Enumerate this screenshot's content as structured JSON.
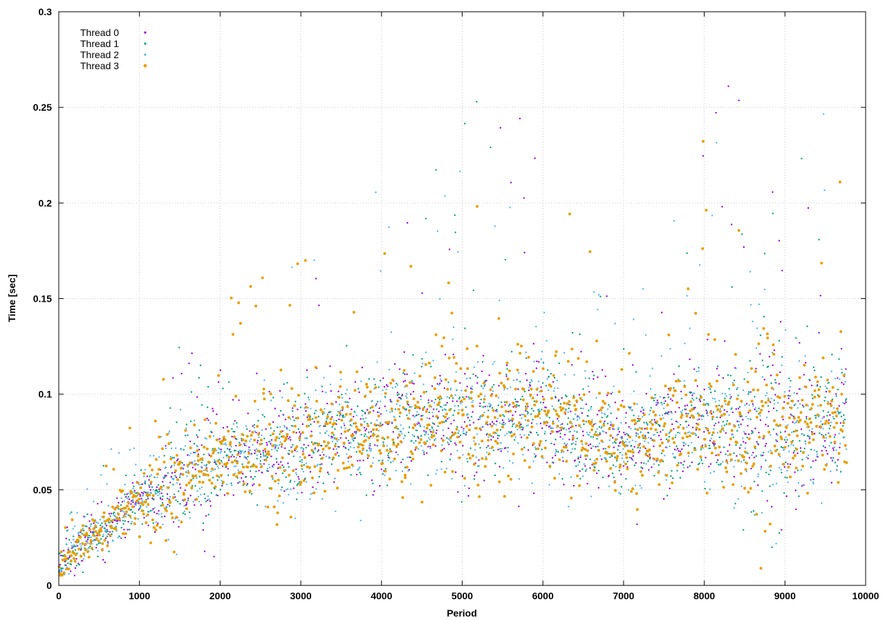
{
  "chart_data": {
    "type": "scatter",
    "title": "",
    "xlabel": "Period",
    "ylabel": "Time [sec]",
    "xlim": [
      0,
      10000
    ],
    "ylim": [
      0,
      0.3
    ],
    "xticks": [
      0,
      1000,
      2000,
      3000,
      4000,
      5000,
      6000,
      7000,
      8000,
      9000,
      10000
    ],
    "yticks": [
      0,
      0.05,
      0.1,
      0.15,
      0.2,
      0.25,
      0.3
    ],
    "xtick_labels": [
      "0",
      "1000",
      "2000",
      "3000",
      "4000",
      "5000",
      "6000",
      "7000",
      "8000",
      "9000",
      "10000"
    ],
    "ytick_labels": [
      "0",
      "0.05",
      "0.1",
      "0.15",
      "0.2",
      "0.25",
      "0.3"
    ],
    "grid": true,
    "legend_position": "top-left",
    "series": [
      {
        "name": "Thread 0",
        "color": "#9400d3",
        "marker_size": 1.2
      },
      {
        "name": "Thread 1",
        "color": "#009e73",
        "marker_size": 1.2
      },
      {
        "name": "Thread 2",
        "color": "#56b4e9",
        "marker_size": 1.2
      },
      {
        "name": "Thread 3",
        "color": "#e69f00",
        "marker_size": 2.0
      }
    ],
    "period_max": 9760,
    "profile": [
      {
        "x": 0,
        "center": 0.011,
        "spread": 0.006,
        "peak": 0.03
      },
      {
        "x": 200,
        "center": 0.02,
        "spread": 0.008,
        "peak": 0.045
      },
      {
        "x": 600,
        "center": 0.03,
        "spread": 0.01,
        "peak": 0.07
      },
      {
        "x": 1000,
        "center": 0.045,
        "spread": 0.012,
        "peak": 0.09
      },
      {
        "x": 1500,
        "center": 0.055,
        "spread": 0.014,
        "peak": 0.13
      },
      {
        "x": 2000,
        "center": 0.065,
        "spread": 0.016,
        "peak": 0.15
      },
      {
        "x": 2500,
        "center": 0.072,
        "spread": 0.018,
        "peak": 0.18
      },
      {
        "x": 3000,
        "center": 0.072,
        "spread": 0.02,
        "peak": 0.17
      },
      {
        "x": 3500,
        "center": 0.08,
        "spread": 0.022,
        "peak": 0.19
      },
      {
        "x": 4000,
        "center": 0.082,
        "spread": 0.024,
        "peak": 0.21
      },
      {
        "x": 4500,
        "center": 0.085,
        "spread": 0.025,
        "peak": 0.19
      },
      {
        "x": 5000,
        "center": 0.085,
        "spread": 0.026,
        "peak": 0.28
      },
      {
        "x": 5500,
        "center": 0.088,
        "spread": 0.027,
        "peak": 0.25
      },
      {
        "x": 6000,
        "center": 0.09,
        "spread": 0.028,
        "peak": 0.26
      },
      {
        "x": 6500,
        "center": 0.08,
        "spread": 0.022,
        "peak": 0.2
      },
      {
        "x": 7000,
        "center": 0.075,
        "spread": 0.02,
        "peak": 0.16
      },
      {
        "x": 7500,
        "center": 0.082,
        "spread": 0.024,
        "peak": 0.19
      },
      {
        "x": 8000,
        "center": 0.085,
        "spread": 0.026,
        "peak": 0.25
      },
      {
        "x": 8500,
        "center": 0.085,
        "spread": 0.027,
        "peak": 0.27
      },
      {
        "x": 9000,
        "center": 0.08,
        "spread": 0.025,
        "peak": 0.21
      },
      {
        "x": 9500,
        "center": 0.085,
        "spread": 0.027,
        "peak": 0.25
      },
      {
        "x": 9760,
        "center": 0.09,
        "spread": 0.028,
        "peak": 0.23
      }
    ]
  }
}
